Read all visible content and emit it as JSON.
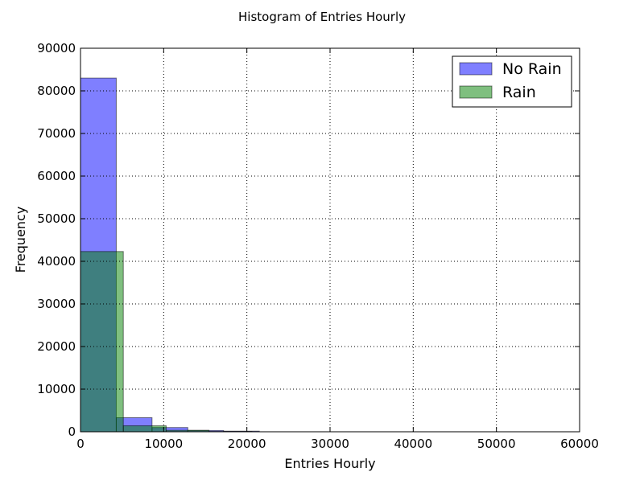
{
  "chart_data": {
    "type": "bar",
    "title": "Histogram of Entries Hourly",
    "xlabel": "Entries Hourly",
    "ylabel": "Frequency",
    "xlim": [
      0,
      60000
    ],
    "ylim": [
      0,
      90000
    ],
    "xticks": [
      0,
      10000,
      20000,
      30000,
      40000,
      50000,
      60000
    ],
    "yticks": [
      0,
      10000,
      20000,
      30000,
      40000,
      50000,
      60000,
      70000,
      80000,
      90000
    ],
    "grid": true,
    "legend_position": "top-right",
    "series": [
      {
        "name": "No Rain",
        "color": "#0000ff",
        "bins": [
          {
            "start": 0,
            "end": 4300,
            "value": 83000
          },
          {
            "start": 4300,
            "end": 8600,
            "value": 3300
          },
          {
            "start": 8600,
            "end": 12900,
            "value": 1000
          },
          {
            "start": 12900,
            "end": 17200,
            "value": 300
          },
          {
            "start": 17200,
            "end": 21500,
            "value": 150
          }
        ]
      },
      {
        "name": "Rain",
        "color": "#008000",
        "bins": [
          {
            "start": 0,
            "end": 5150,
            "value": 42300
          },
          {
            "start": 5150,
            "end": 10300,
            "value": 1400
          },
          {
            "start": 10300,
            "end": 15450,
            "value": 350
          },
          {
            "start": 15450,
            "end": 20600,
            "value": 80
          }
        ]
      }
    ]
  }
}
